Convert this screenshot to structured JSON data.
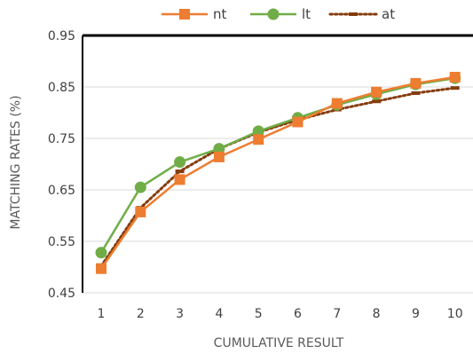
{
  "chart_data": {
    "type": "line",
    "title": "",
    "xlabel": "CUMULATIVE RESULT",
    "ylabel": "MATCHING RATES (%)",
    "categories": [
      "1",
      "2",
      "3",
      "4",
      "5",
      "6",
      "7",
      "8",
      "9",
      "10"
    ],
    "y_ticks": [
      "0.45",
      "0.55",
      "0.65",
      "0.75",
      "0.85",
      "0.95"
    ],
    "ylim": [
      0.45,
      0.95
    ],
    "grid": "horizontal",
    "legend_position": "top",
    "series": [
      {
        "name": "nt",
        "color": "#ED7D31",
        "marker": "square",
        "line_style": "solid",
        "values": [
          0.497,
          0.607,
          0.67,
          0.714,
          0.748,
          0.782,
          0.818,
          0.84,
          0.857,
          0.869
        ]
      },
      {
        "name": "lt",
        "color": "#70AD47",
        "marker": "circle",
        "line_style": "solid",
        "values": [
          0.528,
          0.655,
          0.704,
          0.73,
          0.764,
          0.79,
          0.815,
          0.836,
          0.855,
          0.867
        ]
      },
      {
        "name": "at",
        "color": "#843C0C",
        "marker": "dash",
        "line_style": "dotted",
        "values": [
          0.502,
          0.615,
          0.686,
          0.73,
          0.762,
          0.786,
          0.806,
          0.822,
          0.838,
          0.848
        ]
      }
    ]
  }
}
